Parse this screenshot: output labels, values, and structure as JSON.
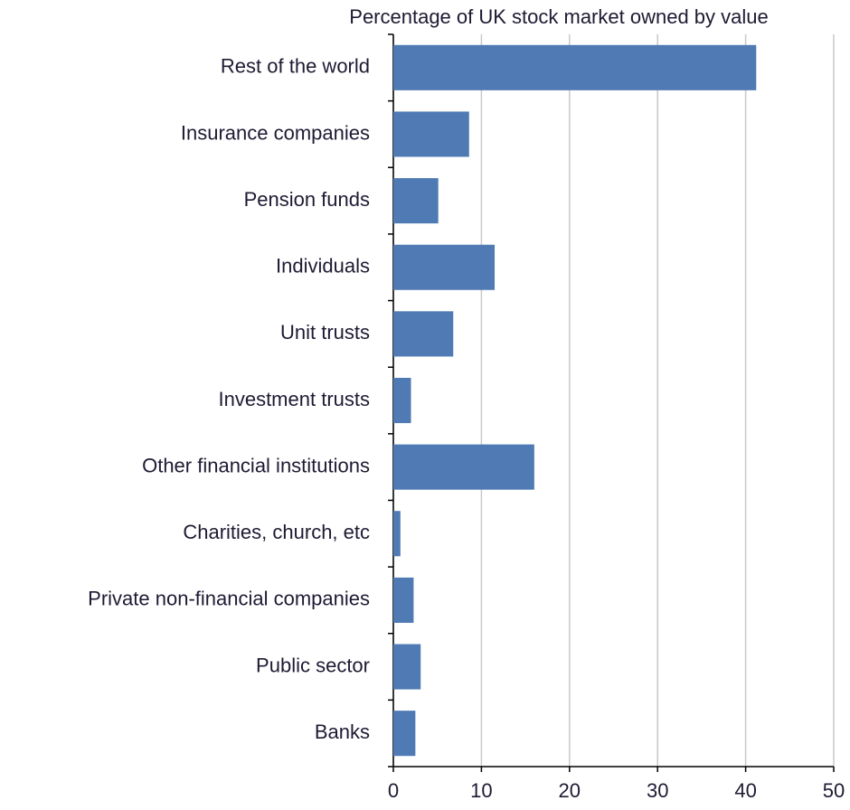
{
  "chart_data": {
    "type": "barh",
    "title": "Percentage of UK stock market owned by value",
    "categories": [
      "Rest of the world",
      "Insurance companies",
      "Pension funds",
      "Individuals",
      "Unit trusts",
      "Investment trusts",
      "Other financial institutions",
      "Charities, church, etc",
      "Private non-financial companies",
      "Public sector",
      "Banks"
    ],
    "values": [
      41.2,
      8.6,
      5.1,
      11.5,
      6.8,
      2.0,
      16.0,
      0.8,
      2.3,
      3.1,
      2.5
    ],
    "color": "#4f7ab3",
    "xlim": [
      0,
      50
    ],
    "xticks": [
      0,
      10,
      20,
      30,
      40,
      50
    ],
    "grid": true
  }
}
